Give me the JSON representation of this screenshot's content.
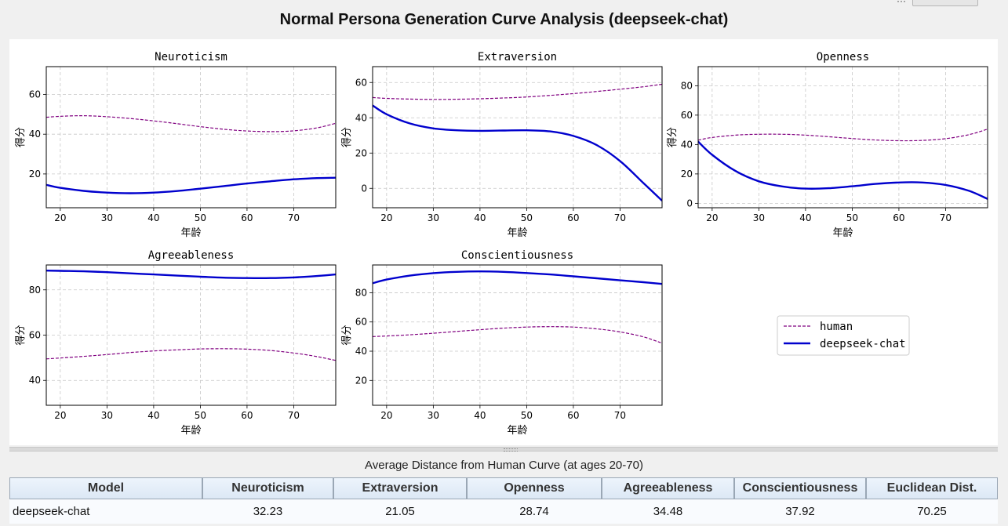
{
  "window": {
    "title": "Normal Persona Generation Curve Analysis (deepseek-chat)",
    "topbar_text": "···"
  },
  "chart_data": {
    "type": "line",
    "x_label": "年龄",
    "y_label": "得分",
    "x_ticks": [
      20,
      30,
      40,
      50,
      60,
      70
    ],
    "xlim": [
      17,
      79
    ],
    "legend": {
      "placement": "right",
      "entries": [
        {
          "name": "human",
          "color": "#800080",
          "style": "dashed"
        },
        {
          "name": "deepseek-chat",
          "color": "#0000cd",
          "style": "solid"
        }
      ]
    },
    "grid": true,
    "subplots": [
      {
        "title": "Neuroticism",
        "ylim": [
          3,
          74
        ],
        "y_ticks": [
          20,
          40,
          60
        ],
        "x": [
          17,
          20,
          25,
          30,
          35,
          40,
          45,
          50,
          55,
          60,
          65,
          70,
          75,
          79
        ],
        "series": [
          {
            "name": "human",
            "values": [
              48.5,
              49.0,
              49.3,
              48.8,
              47.9,
              46.7,
              45.3,
              43.8,
              42.5,
              41.6,
              41.3,
              41.7,
              43.2,
              45.5
            ]
          },
          {
            "name": "deepseek-chat",
            "values": [
              14.5,
              13.0,
              11.5,
              10.6,
              10.3,
              10.6,
              11.4,
              12.6,
              13.9,
              15.2,
              16.3,
              17.3,
              17.9,
              18.1
            ]
          }
        ]
      },
      {
        "title": "Extraversion",
        "ylim": [
          -11,
          69
        ],
        "y_ticks": [
          0,
          20,
          40,
          60
        ],
        "x": [
          17,
          20,
          25,
          30,
          35,
          40,
          45,
          50,
          55,
          60,
          65,
          70,
          75,
          79
        ],
        "series": [
          {
            "name": "human",
            "values": [
              51.5,
              51.0,
              50.6,
              50.4,
              50.5,
              50.8,
              51.2,
              51.8,
              52.7,
              53.7,
              54.9,
              56.2,
              57.6,
              59.0
            ]
          },
          {
            "name": "deepseek-chat",
            "values": [
              47.0,
              42.0,
              36.8,
              34.0,
              32.9,
              32.6,
              32.8,
              32.9,
              32.3,
              29.7,
              24.5,
              15.5,
              3.0,
              -7.0
            ]
          }
        ]
      },
      {
        "title": "Openness",
        "ylim": [
          -3,
          93
        ],
        "y_ticks": [
          0,
          20,
          40,
          60,
          80
        ],
        "x": [
          17,
          20,
          25,
          30,
          35,
          40,
          45,
          50,
          55,
          60,
          65,
          70,
          75,
          79
        ],
        "series": [
          {
            "name": "human",
            "values": [
              43.0,
              44.8,
              46.4,
              47.0,
              47.0,
              46.4,
              45.3,
              44.1,
              43.1,
              42.6,
              42.8,
              44.0,
              46.7,
              50.5
            ]
          },
          {
            "name": "deepseek-chat",
            "values": [
              42.0,
              33.0,
              22.0,
              15.0,
              11.5,
              10.0,
              10.3,
              11.6,
              13.2,
              14.2,
              14.2,
              12.5,
              8.5,
              3.0
            ]
          }
        ]
      },
      {
        "title": "Agreeableness",
        "ylim": [
          29,
          91
        ],
        "y_ticks": [
          40,
          60,
          80
        ],
        "x": [
          17,
          20,
          25,
          30,
          35,
          40,
          45,
          50,
          55,
          60,
          65,
          70,
          75,
          79
        ],
        "series": [
          {
            "name": "human",
            "values": [
              49.5,
              49.9,
              50.6,
              51.4,
              52.3,
              53.0,
              53.5,
              53.9,
              54.0,
              53.8,
              53.2,
              52.1,
              50.5,
              48.8
            ]
          },
          {
            "name": "deepseek-chat",
            "values": [
              88.5,
              88.4,
              88.2,
              87.8,
              87.3,
              86.8,
              86.3,
              85.8,
              85.4,
              85.2,
              85.2,
              85.5,
              86.1,
              86.8
            ]
          }
        ]
      },
      {
        "title": "Conscientiousness",
        "ylim": [
          3,
          99
        ],
        "y_ticks": [
          20,
          40,
          60,
          80
        ],
        "x": [
          17,
          20,
          25,
          30,
          35,
          40,
          45,
          50,
          55,
          60,
          65,
          70,
          75,
          79
        ],
        "series": [
          {
            "name": "human",
            "values": [
              50.0,
              50.4,
              51.2,
              52.3,
              53.5,
              54.7,
              55.8,
              56.5,
              56.8,
              56.5,
              55.3,
              53.2,
              49.8,
              45.5
            ]
          },
          {
            "name": "deepseek-chat",
            "values": [
              86.5,
              89.0,
              91.7,
              93.4,
              94.3,
              94.6,
              94.3,
              93.5,
              92.5,
              91.2,
              89.9,
              88.5,
              87.2,
              86.0
            ]
          }
        ]
      }
    ]
  },
  "table": {
    "caption": "Average Distance from Human Curve (at ages 20-70)",
    "headers": [
      "Model",
      "Neuroticism",
      "Extraversion",
      "Openness",
      "Agreeableness",
      "Conscientiousness",
      "Euclidean Dist."
    ],
    "rows": [
      [
        "deepseek-chat",
        "32.23",
        "21.05",
        "28.74",
        "34.48",
        "37.92",
        "70.25"
      ]
    ]
  },
  "colors": {
    "human": "#800080",
    "model": "#0000cd",
    "grid": "#c8c8c8",
    "header_bg": "#dce8f5"
  }
}
